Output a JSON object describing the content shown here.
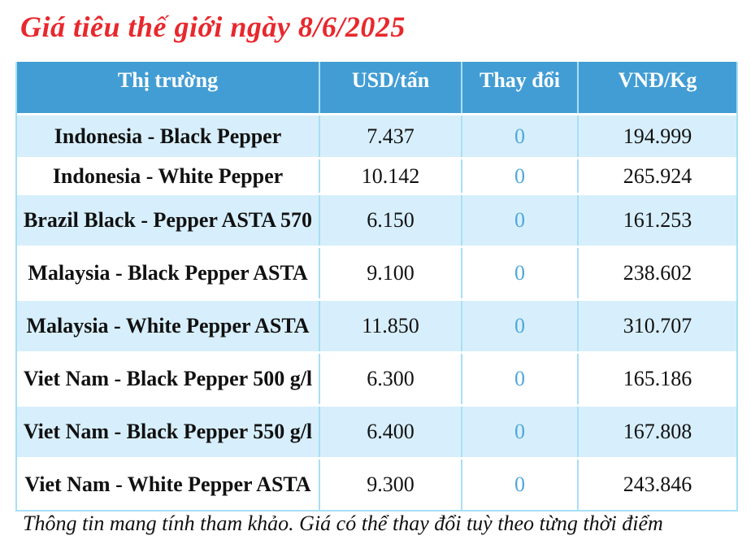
{
  "page": {
    "title": "Giá tiêu thế giới ngày 8/6/2025",
    "footer_note": "Thông tin mang tính tham khảo. Giá có thể thay đổi tuỳ theo từng thời điểm"
  },
  "colors": {
    "title_red": "#e8282d",
    "header_blue": "#429dd4",
    "row_light_blue": "#d7effc",
    "change_zero_blue": "#4fa8dc",
    "grid_blue": "#a8dff5",
    "text_black": "#111111"
  },
  "chart_data": {
    "type": "table",
    "title": "Giá tiêu thế giới ngày 8/6/2025",
    "columns": [
      "Thị trường",
      "USD/tấn",
      "Thay đổi",
      "VNĐ/Kg"
    ],
    "rows": [
      {
        "market": "Indonesia - Black Pepper",
        "usd_per_ton": "7.437",
        "change": "0",
        "vnd_per_kg": "194.999"
      },
      {
        "market": "Indonesia - White Pepper",
        "usd_per_ton": "10.142",
        "change": "0",
        "vnd_per_kg": "265.924"
      },
      {
        "market": "Brazil Black - Pepper ASTA 570",
        "usd_per_ton": "6.150",
        "change": "0",
        "vnd_per_kg": "161.253"
      },
      {
        "market": "Malaysia - Black Pepper ASTA",
        "usd_per_ton": "9.100",
        "change": "0",
        "vnd_per_kg": "238.602"
      },
      {
        "market": "Malaysia - White Pepper ASTA",
        "usd_per_ton": "11.850",
        "change": "0",
        "vnd_per_kg": "310.707"
      },
      {
        "market": "Viet Nam - Black Pepper 500 g/l",
        "usd_per_ton": "6.300",
        "change": "0",
        "vnd_per_kg": "165.186"
      },
      {
        "market": "Viet Nam - Black Pepper 550 g/l",
        "usd_per_ton": "6.400",
        "change": "0",
        "vnd_per_kg": "167.808"
      },
      {
        "market": "Viet Nam - White Pepper ASTA",
        "usd_per_ton": "9.300",
        "change": "0",
        "vnd_per_kg": "243.846"
      }
    ],
    "note": "Thông tin mang tính tham khảo. Giá có thể thay đổi tuỳ theo từng thời điểm"
  }
}
